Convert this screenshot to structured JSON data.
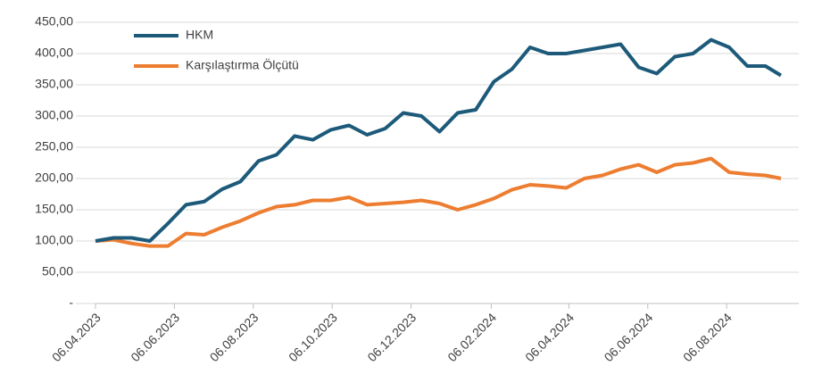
{
  "chart_data": {
    "type": "line",
    "x": [
      "06.04.2023",
      "20.04.2023",
      "04.05.2023",
      "18.05.2023",
      "01.06.2023",
      "15.06.2023",
      "29.06.2023",
      "13.07.2023",
      "27.07.2023",
      "10.08.2023",
      "24.08.2023",
      "07.09.2023",
      "21.09.2023",
      "05.10.2023",
      "19.10.2023",
      "02.11.2023",
      "16.11.2023",
      "30.11.2023",
      "14.12.2023",
      "28.12.2023",
      "11.01.2024",
      "25.01.2024",
      "08.02.2024",
      "22.02.2024",
      "07.03.2024",
      "21.03.2024",
      "04.04.2024",
      "18.04.2024",
      "02.05.2024",
      "16.05.2024",
      "30.05.2024",
      "13.06.2024",
      "27.06.2024",
      "11.07.2024",
      "25.07.2024",
      "08.08.2024",
      "22.08.2024",
      "05.09.2024",
      "17.09.2024"
    ],
    "series": [
      {
        "name": "HKM",
        "color": "#1d5a7a",
        "values": [
          100,
          105,
          105,
          100,
          128,
          158,
          163,
          183,
          195,
          228,
          238,
          268,
          262,
          278,
          285,
          270,
          280,
          305,
          300,
          275,
          305,
          310,
          355,
          375,
          410,
          400,
          400,
          405,
          410,
          415,
          378,
          368,
          395,
          400,
          422,
          410,
          380,
          380,
          365
        ]
      },
      {
        "name": "Karşılaştırma Ölçütü",
        "color": "#ed7d31",
        "values": [
          100,
          102,
          96,
          92,
          92,
          112,
          110,
          122,
          132,
          145,
          155,
          158,
          165,
          165,
          170,
          158,
          160,
          162,
          165,
          160,
          150,
          158,
          168,
          182,
          190,
          188,
          185,
          200,
          205,
          215,
          222,
          210,
          222,
          225,
          232,
          210,
          207,
          205,
          200
        ]
      }
    ],
    "xlim": [
      "06.04.2023",
      "17.09.2024"
    ],
    "xticks": [
      "06.04.2023",
      "06.06.2023",
      "06.08.2023",
      "06.10.2023",
      "06.12.2023",
      "06.02.2024",
      "06.04.2024",
      "06.06.2024",
      "06.08.2024"
    ],
    "ylim": [
      0,
      450
    ],
    "yticks": [
      {
        "value": 0,
        "label": "-"
      },
      {
        "value": 50,
        "label": "50,00"
      },
      {
        "value": 100,
        "label": "100,00"
      },
      {
        "value": 150,
        "label": "150,00"
      },
      {
        "value": 200,
        "label": "200,00"
      },
      {
        "value": 250,
        "label": "250,00"
      },
      {
        "value": 300,
        "label": "300,00"
      },
      {
        "value": 350,
        "label": "350,00"
      },
      {
        "value": 400,
        "label": "400,00"
      },
      {
        "value": 450,
        "label": "450,00"
      }
    ],
    "grid": true,
    "legend": "top-left"
  }
}
